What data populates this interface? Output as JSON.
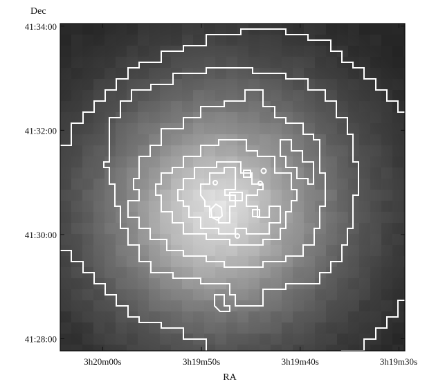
{
  "chart_data": {
    "type": "heatmap",
    "title": "",
    "xlabel": "RA",
    "ylabel": "Dec",
    "x_ticks": [
      {
        "label": "3h20m00s",
        "ra_seconds": 12000
      },
      {
        "label": "3h19m50s",
        "ra_seconds": 11990
      },
      {
        "label": "3h19m40s",
        "ra_seconds": 11980
      },
      {
        "label": "3h19m30s",
        "ra_seconds": 11970
      }
    ],
    "y_ticks": [
      {
        "label": "41:34:00",
        "dec_arcsec": 149640
      },
      {
        "label": "41:32:00",
        "dec_arcsec": 149520
      },
      {
        "label": "41:30:00",
        "dec_arcsec": 149400
      },
      {
        "label": "41:28:00",
        "dec_arcsec": 149280
      }
    ],
    "ra_range_seconds": [
      12004.3,
      11969.4
    ],
    "dec_range_arcsec": [
      149266,
      149643
    ],
    "image": {
      "colormap": "grayscale",
      "description": "X-ray surface brightness, bright centrally peaked emission",
      "peak": {
        "ra_seconds": 11989,
        "dec_arcsec": 149416
      },
      "peak_value": 1.0,
      "background_value": 0.08,
      "core_radius_arcsec": 75
    },
    "contour_color": "#ffffff",
    "contour_count": 6,
    "grid": false,
    "legend": "none"
  }
}
